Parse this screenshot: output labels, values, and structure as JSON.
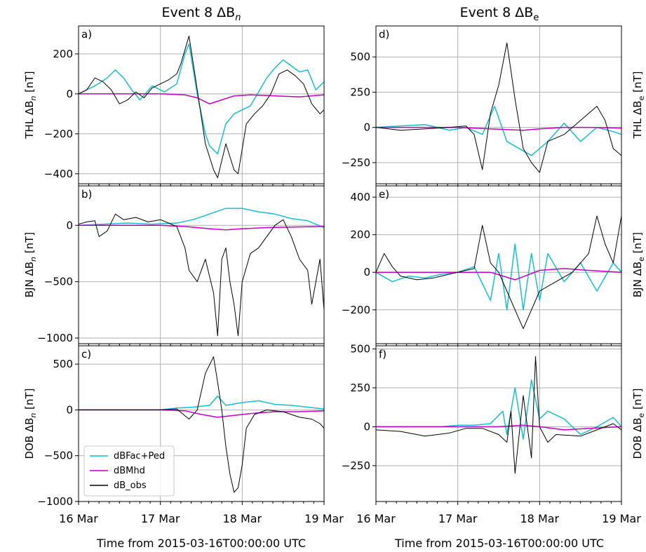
{
  "figure": {
    "xlabel": "Time from 2015-03-16T00:00:00 UTC",
    "xticks": [
      {
        "v": 0,
        "label": "16 Mar"
      },
      {
        "v": 1,
        "label": "17 Mar"
      },
      {
        "v": 2,
        "label": "18 Mar"
      },
      {
        "v": 3,
        "label": "19 Mar"
      }
    ],
    "legend": {
      "placement": "lower-left of panel c",
      "entries": [
        "dBFac+Ped",
        "dBMhd",
        "dB_obs"
      ]
    },
    "colors": {
      "dBFac+Ped": "#17becf",
      "dBMhd": "#c000c0",
      "dB_obs": "#000000",
      "grid": "#b0b0b0"
    }
  },
  "columns": [
    {
      "title_main": "Event 8  ΔB",
      "title_sub": "n"
    },
    {
      "title_main": "Event 8  ΔB",
      "title_sub": "e"
    }
  ],
  "chart_data": [
    {
      "type": "line",
      "panel": "a)",
      "station": "THL",
      "component": "n",
      "ylabel": "THL ΔB",
      "ylabel_sub": "n",
      "yunit": " [nT]",
      "ylim": [
        -450,
        340
      ],
      "yticks": [
        200,
        0,
        -200,
        -400
      ],
      "ytick_labels": [
        "200",
        "0",
        "−200",
        "−400"
      ],
      "series": [
        {
          "name": "dBFac+Ped",
          "x": [
            0,
            0.2,
            0.35,
            0.45,
            0.55,
            0.65,
            0.75,
            0.9,
            1.05,
            1.2,
            1.3,
            1.35,
            1.45,
            1.55,
            1.6,
            1.7,
            1.8,
            1.9,
            2.0,
            2.1,
            2.2,
            2.3,
            2.4,
            2.5,
            2.6,
            2.7,
            2.8,
            2.9,
            3.0
          ],
          "y": [
            0,
            40,
            80,
            120,
            80,
            20,
            -30,
            40,
            10,
            50,
            200,
            250,
            0,
            -200,
            -260,
            -300,
            -150,
            -100,
            -80,
            -60,
            10,
            80,
            130,
            170,
            140,
            110,
            120,
            20,
            60
          ]
        },
        {
          "name": "dBMhd",
          "x": [
            0,
            0.5,
            1.0,
            1.3,
            1.45,
            1.6,
            1.75,
            1.9,
            2.1,
            2.4,
            2.7,
            3.0
          ],
          "y": [
            0,
            0,
            0,
            -5,
            -20,
            -50,
            -30,
            -10,
            -5,
            -10,
            -15,
            -5
          ]
        },
        {
          "name": "dB_obs",
          "x": [
            0,
            0.1,
            0.2,
            0.3,
            0.4,
            0.5,
            0.6,
            0.7,
            0.8,
            0.9,
            1.0,
            1.1,
            1.2,
            1.25,
            1.35,
            1.45,
            1.55,
            1.65,
            1.7,
            1.8,
            1.9,
            1.95,
            2.05,
            2.15,
            2.25,
            2.35,
            2.45,
            2.55,
            2.65,
            2.75,
            2.85,
            2.95,
            3.0
          ],
          "y": [
            0,
            20,
            80,
            60,
            20,
            -50,
            -30,
            10,
            -20,
            30,
            50,
            70,
            100,
            150,
            290,
            20,
            -250,
            -380,
            -420,
            -250,
            -380,
            -400,
            -150,
            -100,
            -60,
            0,
            100,
            120,
            90,
            50,
            -50,
            -100,
            -80
          ]
        }
      ]
    },
    {
      "type": "line",
      "panel": "b)",
      "station": "BJN",
      "component": "n",
      "ylabel": "BJN ΔB",
      "ylabel_sub": "n",
      "yunit": " [nT]",
      "ylim": [
        -1050,
        350
      ],
      "yticks": [
        0,
        -500,
        -1000
      ],
      "ytick_labels": [
        "0",
        "−500",
        "−1000"
      ],
      "series": [
        {
          "name": "dBFac+Ped",
          "x": [
            0,
            0.3,
            0.6,
            0.9,
            1.2,
            1.4,
            1.6,
            1.8,
            2.0,
            2.2,
            2.4,
            2.6,
            2.8,
            3.0
          ],
          "y": [
            0,
            10,
            20,
            10,
            20,
            50,
            100,
            150,
            150,
            120,
            100,
            60,
            40,
            -20
          ]
        },
        {
          "name": "dBMhd",
          "x": [
            0,
            0.5,
            1.0,
            1.3,
            1.6,
            1.8,
            2.0,
            2.3,
            2.6,
            3.0
          ],
          "y": [
            0,
            0,
            0,
            -10,
            -30,
            -40,
            -30,
            -20,
            -15,
            -10
          ]
        },
        {
          "name": "dB_obs",
          "x": [
            0,
            0.1,
            0.2,
            0.25,
            0.35,
            0.45,
            0.55,
            0.7,
            0.85,
            1.0,
            1.1,
            1.2,
            1.3,
            1.35,
            1.45,
            1.55,
            1.65,
            1.7,
            1.75,
            1.8,
            1.85,
            1.9,
            1.95,
            2.0,
            2.1,
            2.2,
            2.3,
            2.4,
            2.5,
            2.6,
            2.7,
            2.8,
            2.85,
            2.95,
            3.0
          ],
          "y": [
            10,
            30,
            40,
            -100,
            -50,
            100,
            50,
            70,
            30,
            50,
            20,
            -10,
            -200,
            -400,
            -500,
            -300,
            -600,
            -980,
            -300,
            -200,
            -500,
            -700,
            -980,
            -500,
            -250,
            -200,
            -100,
            0,
            50,
            -100,
            -300,
            -400,
            -700,
            -300,
            -750
          ]
        }
      ]
    },
    {
      "type": "line",
      "panel": "c)",
      "station": "DOB",
      "component": "n",
      "ylabel": "DOB ΔB",
      "ylabel_sub": "n",
      "yunit": " [nT]",
      "ylim": [
        -1000,
        700
      ],
      "yticks": [
        500,
        0,
        -500,
        -1000
      ],
      "ytick_labels": [
        "500",
        "0",
        "−500",
        "−1000"
      ],
      "series": [
        {
          "name": "dBFac+Ped",
          "x": [
            0,
            0.5,
            1.0,
            1.2,
            1.4,
            1.6,
            1.7,
            1.8,
            2.0,
            2.2,
            2.4,
            2.6,
            2.8,
            3.0
          ],
          "y": [
            0,
            0,
            0,
            20,
            30,
            50,
            150,
            50,
            80,
            100,
            60,
            50,
            30,
            10
          ]
        },
        {
          "name": "dBMhd",
          "x": [
            0,
            0.5,
            1.0,
            1.3,
            1.5,
            1.7,
            1.9,
            2.1,
            2.4,
            2.7,
            3.0
          ],
          "y": [
            0,
            0,
            0,
            -10,
            -50,
            -80,
            -60,
            -40,
            -20,
            -20,
            -10
          ]
        },
        {
          "name": "dB_obs",
          "x": [
            0,
            0.5,
            1.0,
            1.2,
            1.35,
            1.45,
            1.55,
            1.65,
            1.7,
            1.75,
            1.8,
            1.85,
            1.9,
            1.95,
            2.0,
            2.05,
            2.15,
            2.3,
            2.5,
            2.7,
            2.85,
            2.95,
            3.0
          ],
          "y": [
            0,
            0,
            0,
            10,
            -100,
            0,
            400,
            580,
            300,
            0,
            -400,
            -700,
            -900,
            -850,
            -600,
            -200,
            -50,
            0,
            -20,
            -80,
            -100,
            -150,
            -200
          ]
        }
      ]
    },
    {
      "type": "line",
      "panel": "d)",
      "station": "THL",
      "component": "e",
      "ylabel": "THL ΔB",
      "ylabel_sub": "e",
      "yunit": " [nT]",
      "ylim": [
        -400,
        720
      ],
      "yticks": [
        500,
        250,
        0,
        -250
      ],
      "ytick_labels": [
        "500",
        "250",
        "0",
        "−250"
      ],
      "series": [
        {
          "name": "dBFac+Ped",
          "x": [
            0,
            0.3,
            0.6,
            0.9,
            1.1,
            1.3,
            1.45,
            1.6,
            1.75,
            1.9,
            2.1,
            2.3,
            2.5,
            2.7,
            2.9,
            3.0
          ],
          "y": [
            0,
            10,
            20,
            -20,
            0,
            -50,
            150,
            -100,
            -150,
            -200,
            -100,
            30,
            -100,
            0,
            -30,
            -50
          ]
        },
        {
          "name": "dBMhd",
          "x": [
            0,
            0.5,
            1.0,
            1.4,
            1.6,
            1.8,
            2.0,
            2.3,
            2.6,
            3.0
          ],
          "y": [
            0,
            0,
            0,
            -10,
            -15,
            -20,
            -10,
            0,
            0,
            -5
          ]
        },
        {
          "name": "dB_obs",
          "x": [
            0,
            0.3,
            0.6,
            0.9,
            1.1,
            1.2,
            1.3,
            1.4,
            1.5,
            1.6,
            1.7,
            1.8,
            1.9,
            2.0,
            2.1,
            2.3,
            2.5,
            2.7,
            2.8,
            2.9,
            3.0
          ],
          "y": [
            0,
            -20,
            -10,
            0,
            10,
            -50,
            -300,
            100,
            300,
            600,
            200,
            -150,
            -250,
            -320,
            -100,
            -50,
            50,
            150,
            50,
            -150,
            -200
          ]
        }
      ]
    },
    {
      "type": "line",
      "panel": "e)",
      "station": "BJN",
      "component": "e",
      "ylabel": "BJN ΔB",
      "ylabel_sub": "e",
      "yunit": " [nT]",
      "ylim": [
        -380,
        460
      ],
      "yticks": [
        400,
        200,
        0,
        -200
      ],
      "ytick_labels": [
        "400",
        "200",
        "0",
        "−200"
      ],
      "series": [
        {
          "name": "dBFac+Ped",
          "x": [
            0,
            0.2,
            0.4,
            0.6,
            0.8,
            1.0,
            1.2,
            1.4,
            1.5,
            1.6,
            1.7,
            1.8,
            1.9,
            2.0,
            2.1,
            2.3,
            2.5,
            2.7,
            2.9,
            3.0
          ],
          "y": [
            0,
            -50,
            -20,
            -30,
            -10,
            0,
            30,
            -150,
            100,
            -200,
            150,
            -200,
            100,
            -150,
            100,
            -50,
            50,
            -100,
            50,
            0
          ]
        },
        {
          "name": "dBMhd",
          "x": [
            0,
            0.5,
            1.0,
            1.4,
            1.7,
            2.0,
            2.3,
            2.6,
            3.0
          ],
          "y": [
            0,
            0,
            0,
            0,
            -40,
            10,
            20,
            10,
            0
          ]
        },
        {
          "name": "dB_obs",
          "x": [
            0,
            0.1,
            0.2,
            0.3,
            0.5,
            0.7,
            1.0,
            1.2,
            1.3,
            1.4,
            1.5,
            1.6,
            1.7,
            1.8,
            1.9,
            2.0,
            2.2,
            2.4,
            2.6,
            2.7,
            2.8,
            2.9,
            3.0
          ],
          "y": [
            0,
            100,
            30,
            -20,
            -40,
            -30,
            0,
            20,
            250,
            50,
            0,
            -100,
            -200,
            -300,
            -200,
            -100,
            -50,
            0,
            100,
            300,
            150,
            50,
            300
          ]
        }
      ]
    },
    {
      "type": "line",
      "panel": "f)",
      "station": "DOB",
      "component": "e",
      "ylabel": "DOB ΔB",
      "ylabel_sub": "e",
      "yunit": " [nT]",
      "ylim": [
        -480,
        520
      ],
      "yticks": [
        500,
        250,
        0,
        -250
      ],
      "ytick_labels": [
        "500",
        "250",
        "0",
        "−250"
      ],
      "series": [
        {
          "name": "dBFac+Ped",
          "x": [
            0,
            0.4,
            0.8,
            1.0,
            1.2,
            1.4,
            1.55,
            1.6,
            1.7,
            1.8,
            1.9,
            2.0,
            2.1,
            2.3,
            2.5,
            2.7,
            2.9,
            3.0
          ],
          "y": [
            0,
            0,
            0,
            10,
            10,
            20,
            100,
            -50,
            250,
            -80,
            300,
            50,
            100,
            50,
            -50,
            0,
            60,
            0
          ]
        },
        {
          "name": "dBMhd",
          "x": [
            0,
            0.5,
            1.0,
            1.5,
            1.8,
            2.0,
            2.3,
            2.6,
            3.0
          ],
          "y": [
            0,
            0,
            0,
            0,
            10,
            0,
            -20,
            -10,
            0
          ]
        },
        {
          "name": "dB_obs",
          "x": [
            0,
            0.3,
            0.6,
            0.9,
            1.1,
            1.3,
            1.5,
            1.6,
            1.65,
            1.7,
            1.8,
            1.9,
            1.95,
            2.0,
            2.1,
            2.2,
            2.5,
            2.7,
            2.9,
            3.0
          ],
          "y": [
            -20,
            -30,
            -60,
            -40,
            -10,
            -10,
            -50,
            -100,
            100,
            -300,
            200,
            -200,
            450,
            0,
            -100,
            -50,
            -60,
            -20,
            20,
            -20
          ]
        }
      ]
    }
  ]
}
